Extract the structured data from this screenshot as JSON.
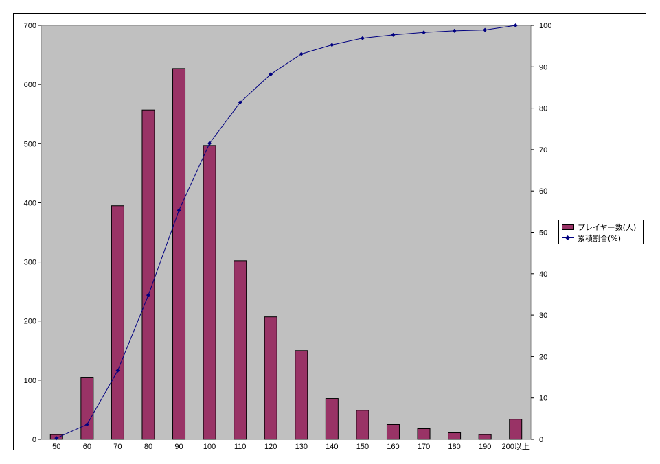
{
  "chart_data": {
    "type": "bar",
    "categories": [
      "50",
      "60",
      "70",
      "80",
      "90",
      "100",
      "110",
      "120",
      "130",
      "140",
      "150",
      "160",
      "170",
      "180",
      "190",
      "200以上"
    ],
    "series": [
      {
        "name": "プレイヤー数(人)",
        "type": "bar",
        "axis": "left",
        "color": "#993366",
        "values": [
          8,
          105,
          395,
          557,
          627,
          497,
          302,
          207,
          150,
          69,
          49,
          25,
          18,
          11,
          8,
          34
        ]
      },
      {
        "name": "累積割合(%)",
        "type": "line",
        "axis": "right",
        "color": "#000080",
        "marker": "diamond",
        "values": [
          0.3,
          3.6,
          16.6,
          34.8,
          55.3,
          71.5,
          81.4,
          88.2,
          93.1,
          95.3,
          96.9,
          97.7,
          98.3,
          98.7,
          98.9,
          100
        ]
      }
    ],
    "y_left": {
      "range": [
        0,
        700
      ],
      "ticks": [
        0,
        100,
        200,
        300,
        400,
        500,
        600,
        700
      ]
    },
    "y_right": {
      "range": [
        0,
        100
      ],
      "ticks": [
        0,
        10,
        20,
        30,
        40,
        50,
        60,
        70,
        80,
        90,
        100
      ]
    },
    "plot_background": "#c0c0c0",
    "grid": false,
    "legend_position": "right"
  }
}
